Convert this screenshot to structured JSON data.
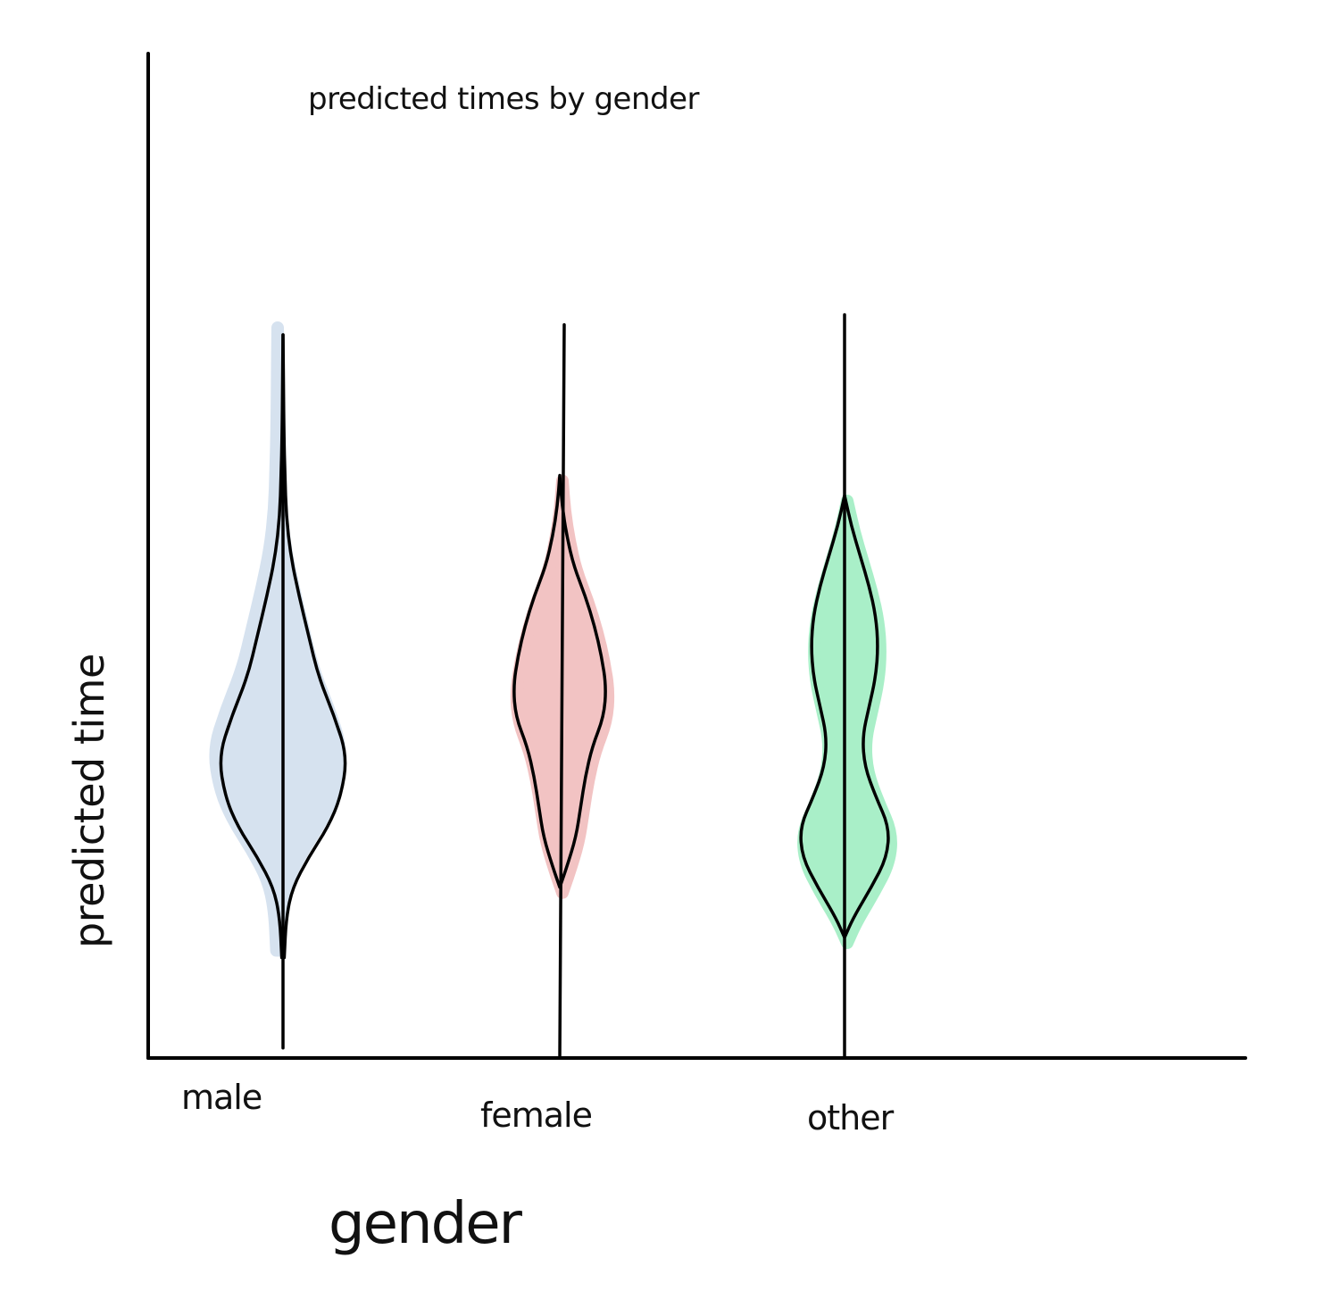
{
  "chart_data": {
    "type": "violin",
    "title": "predicted times by gender",
    "xlabel": "gender",
    "ylabel": "predicted time",
    "categories": [
      "male",
      "female",
      "other"
    ],
    "ylim": [
      0,
      100
    ],
    "grid": false,
    "legend": "none",
    "series": [
      {
        "category": "male",
        "color": "#d6e2ef",
        "min": 1,
        "max": 72,
        "profile": [
          {
            "y": 10,
            "w": 0.02
          },
          {
            "y": 14,
            "w": 0.05
          },
          {
            "y": 17,
            "w": 0.15
          },
          {
            "y": 20,
            "w": 0.4
          },
          {
            "y": 23,
            "w": 0.7
          },
          {
            "y": 26,
            "w": 0.9
          },
          {
            "y": 30,
            "w": 1.0
          },
          {
            "y": 34,
            "w": 0.8
          },
          {
            "y": 38,
            "w": 0.55
          },
          {
            "y": 42,
            "w": 0.4
          },
          {
            "y": 46,
            "w": 0.25
          },
          {
            "y": 50,
            "w": 0.12
          },
          {
            "y": 54,
            "w": 0.05
          },
          {
            "y": 58,
            "w": 0.03
          },
          {
            "y": 62,
            "w": 0.015
          },
          {
            "y": 67,
            "w": 0.008
          },
          {
            "y": 72,
            "w": 0.0
          }
        ]
      },
      {
        "category": "female",
        "color": "#f2c3c3",
        "min": 0,
        "max": 73,
        "profile": [
          {
            "y": 17,
            "w": 0.0
          },
          {
            "y": 19,
            "w": 0.15
          },
          {
            "y": 22,
            "w": 0.35
          },
          {
            "y": 25,
            "w": 0.45
          },
          {
            "y": 28,
            "w": 0.55
          },
          {
            "y": 31,
            "w": 0.7
          },
          {
            "y": 34,
            "w": 0.95
          },
          {
            "y": 37,
            "w": 1.0
          },
          {
            "y": 40,
            "w": 0.9
          },
          {
            "y": 43,
            "w": 0.75
          },
          {
            "y": 46,
            "w": 0.55
          },
          {
            "y": 49,
            "w": 0.3
          },
          {
            "y": 52,
            "w": 0.15
          },
          {
            "y": 55,
            "w": 0.05
          },
          {
            "y": 58,
            "w": 0.0
          }
        ]
      },
      {
        "category": "other",
        "color": "#a9efc8",
        "min": 0,
        "max": 74,
        "profile": [
          {
            "y": 12,
            "w": 0.0
          },
          {
            "y": 14,
            "w": 0.2
          },
          {
            "y": 17,
            "w": 0.6
          },
          {
            "y": 20,
            "w": 0.95
          },
          {
            "y": 23,
            "w": 1.0
          },
          {
            "y": 26,
            "w": 0.7
          },
          {
            "y": 29,
            "w": 0.45
          },
          {
            "y": 32,
            "w": 0.4
          },
          {
            "y": 35,
            "w": 0.55
          },
          {
            "y": 38,
            "w": 0.7
          },
          {
            "y": 41,
            "w": 0.75
          },
          {
            "y": 44,
            "w": 0.7
          },
          {
            "y": 47,
            "w": 0.55
          },
          {
            "y": 50,
            "w": 0.35
          },
          {
            "y": 53,
            "w": 0.15
          },
          {
            "y": 56,
            "w": 0.0
          }
        ]
      }
    ]
  }
}
